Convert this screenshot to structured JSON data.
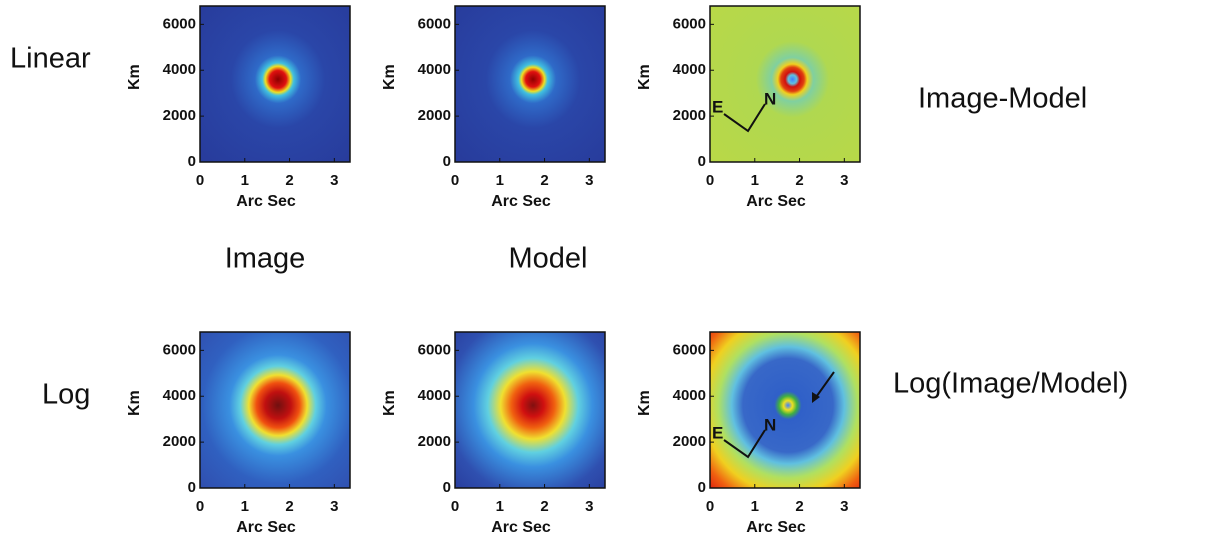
{
  "chart_data": [
    {
      "type": "image",
      "xlabel": "Arc Sec",
      "ylabel": "Km",
      "xlim": [
        0,
        3.35
      ],
      "xticks": [
        0,
        1,
        2,
        3
      ],
      "ylim": [
        0,
        6800
      ],
      "yticks": [
        0,
        2000,
        4000,
        6000
      ]
    },
    {
      "type": "image",
      "xlabel": "Arc Sec",
      "ylabel": "Km",
      "xlim": [
        0,
        3.35
      ],
      "xticks": [
        0,
        1,
        2,
        3
      ],
      "ylim": [
        0,
        6800
      ],
      "yticks": [
        0,
        2000,
        4000,
        6000
      ]
    },
    {
      "type": "image",
      "xlabel": "Arc Sec",
      "ylabel": "Km",
      "xlim": [
        0,
        3.35
      ],
      "xticks": [
        0,
        1,
        2,
        3
      ],
      "ylim": [
        0,
        6800
      ],
      "yticks": [
        0,
        2000,
        4000,
        6000
      ],
      "annotations": [
        "E",
        "N"
      ]
    },
    {
      "type": "image",
      "xlabel": "Arc Sec",
      "ylabel": "Km",
      "xlim": [
        0,
        3.35
      ],
      "xticks": [
        0,
        1,
        2,
        3
      ],
      "ylim": [
        0,
        6800
      ],
      "yticks": [
        0,
        2000,
        4000,
        6000
      ]
    },
    {
      "type": "image",
      "xlabel": "Arc Sec",
      "ylabel": "Km",
      "xlim": [
        0,
        3.35
      ],
      "xticks": [
        0,
        1,
        2,
        3
      ],
      "ylim": [
        0,
        6800
      ],
      "yticks": [
        0,
        2000,
        4000,
        6000
      ]
    },
    {
      "type": "image",
      "xlabel": "Arc Sec",
      "ylabel": "Km",
      "xlim": [
        0,
        3.35
      ],
      "xticks": [
        0,
        1,
        2,
        3
      ],
      "ylim": [
        0,
        6800
      ],
      "yticks": [
        0,
        2000,
        4000,
        6000
      ],
      "annotations": [
        "E",
        "N"
      ]
    }
  ],
  "row_labels": [
    "Linear",
    "Log"
  ],
  "column_labels": [
    "Image",
    "Model"
  ],
  "side_labels": [
    "Image-Model",
    "Log(Image/Model)"
  ]
}
